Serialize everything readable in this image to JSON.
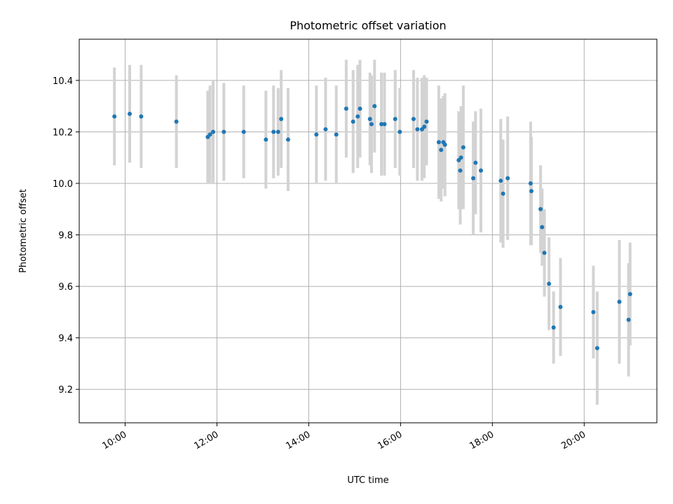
{
  "chart_data": {
    "type": "scatter",
    "title": "Photometric offset variation",
    "xlabel": "UTC time",
    "ylabel": "Photometric offset",
    "grid": true,
    "legend": "none",
    "xlim": [
      "09:00",
      "21:35"
    ],
    "ylim": [
      9.07,
      10.56
    ],
    "x_ticks": [
      "10:00",
      "12:00",
      "14:00",
      "16:00",
      "18:00",
      "20:00"
    ],
    "y_ticks": [
      "9.2",
      "9.4",
      "9.6",
      "9.8",
      "10.0",
      "10.2",
      "10.4"
    ],
    "marker_color": "#1f77b4",
    "errorbar_color": "#d3d3d3",
    "series": [
      {
        "x": [
          "09:46",
          "10:06",
          "10:21",
          "11:07",
          "11:48",
          "11:51",
          "11:55",
          "12:09",
          "12:35",
          "13:04",
          "13:14",
          "13:20",
          "13:24",
          "13:33",
          "14:10",
          "14:22",
          "14:36",
          "14:49",
          "14:58",
          "15:04",
          "15:07",
          "15:20",
          "15:22",
          "15:26",
          "15:35",
          "15:39",
          "15:53",
          "15:59",
          "16:17",
          "16:22",
          "16:28",
          "16:31",
          "16:34",
          "16:50",
          "16:53",
          "16:56",
          "16:58",
          "17:16",
          "17:18",
          "17:19",
          "17:22",
          "17:35",
          "17:38",
          "17:45",
          "18:11",
          "18:14",
          "18:20",
          "18:50",
          "18:51",
          "19:03",
          "19:05",
          "19:08",
          "19:14",
          "19:20",
          "19:29",
          "20:12",
          "20:17",
          "20:46",
          "20:58",
          "21:00"
        ],
        "y": [
          10.26,
          10.27,
          10.26,
          10.24,
          10.18,
          10.19,
          10.2,
          10.2,
          10.2,
          10.17,
          10.2,
          10.2,
          10.25,
          10.17,
          10.19,
          10.21,
          10.19,
          10.29,
          10.24,
          10.26,
          10.29,
          10.25,
          10.23,
          10.3,
          10.23,
          10.23,
          10.25,
          10.2,
          10.25,
          10.21,
          10.21,
          10.22,
          10.24,
          10.16,
          10.13,
          10.16,
          10.15,
          10.09,
          10.05,
          10.1,
          10.14,
          10.02,
          10.08,
          10.05,
          10.01,
          9.96,
          10.02,
          10.0,
          9.97,
          9.9,
          9.83,
          9.73,
          9.61,
          9.44,
          9.52,
          9.5,
          9.36,
          9.54,
          9.47,
          9.57
        ],
        "err": [
          0.19,
          0.19,
          0.2,
          0.18,
          0.18,
          0.19,
          0.2,
          0.19,
          0.18,
          0.19,
          0.18,
          0.17,
          0.19,
          0.2,
          0.19,
          0.2,
          0.19,
          0.19,
          0.2,
          0.2,
          0.19,
          0.18,
          0.19,
          0.18,
          0.2,
          0.2,
          0.19,
          0.17,
          0.19,
          0.2,
          0.2,
          0.2,
          0.17,
          0.22,
          0.2,
          0.18,
          0.2,
          0.19,
          0.21,
          0.2,
          0.24,
          0.22,
          0.2,
          0.24,
          0.24,
          0.21,
          0.24,
          0.24,
          0.21,
          0.17,
          0.15,
          0.17,
          0.18,
          0.14,
          0.19,
          0.18,
          0.22,
          0.24,
          0.22,
          0.2
        ]
      }
    ]
  }
}
